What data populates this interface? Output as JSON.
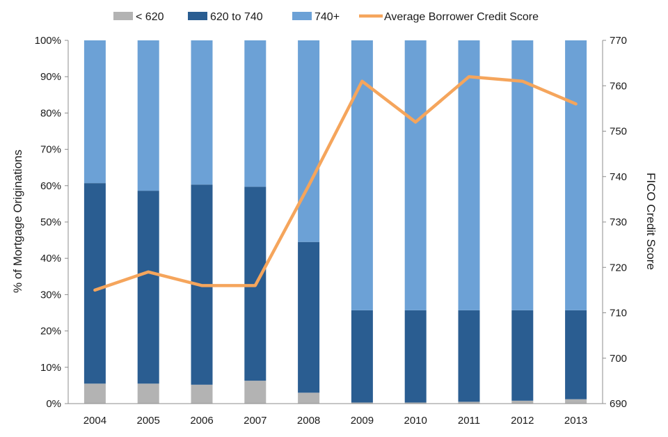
{
  "chart_data": {
    "type": "bar",
    "stacked": true,
    "title": "",
    "categories": [
      "2004",
      "2005",
      "2006",
      "2007",
      "2008",
      "2009",
      "2010",
      "2011",
      "2012",
      "2013"
    ],
    "series": [
      {
        "name": "< 620",
        "color": "#b3b3b3",
        "values": [
          5.5,
          5.5,
          5.2,
          6.3,
          3.0,
          0.3,
          0.3,
          0.5,
          0.8,
          1.2
        ]
      },
      {
        "name": "620 to 740",
        "color": "#2a5d91",
        "values": [
          55.2,
          53.1,
          55.1,
          53.4,
          41.5,
          25.4,
          25.4,
          25.2,
          24.9,
          24.5
        ]
      },
      {
        "name": "740+",
        "color": "#6ca1d6",
        "values": [
          39.3,
          41.4,
          39.7,
          40.3,
          55.5,
          74.3,
          74.3,
          74.3,
          74.3,
          74.3
        ]
      }
    ],
    "line_series": {
      "name": "Average Borrower Credit Score",
      "color": "#f5a55c",
      "axis": "right",
      "values": [
        715,
        719,
        716,
        716,
        738,
        761,
        752,
        762,
        761,
        756
      ]
    },
    "ylabel": "% of Mortgage Originations",
    "ylim": [
      0,
      100
    ],
    "yticks": [
      "0%",
      "10%",
      "20%",
      "30%",
      "40%",
      "50%",
      "60%",
      "70%",
      "80%",
      "90%",
      "100%"
    ],
    "y2label": "FICO Credit Score",
    "y2lim": [
      690,
      770
    ],
    "y2ticks": [
      "690",
      "700",
      "710",
      "720",
      "730",
      "740",
      "750",
      "760",
      "770"
    ],
    "legend_position": "top"
  }
}
